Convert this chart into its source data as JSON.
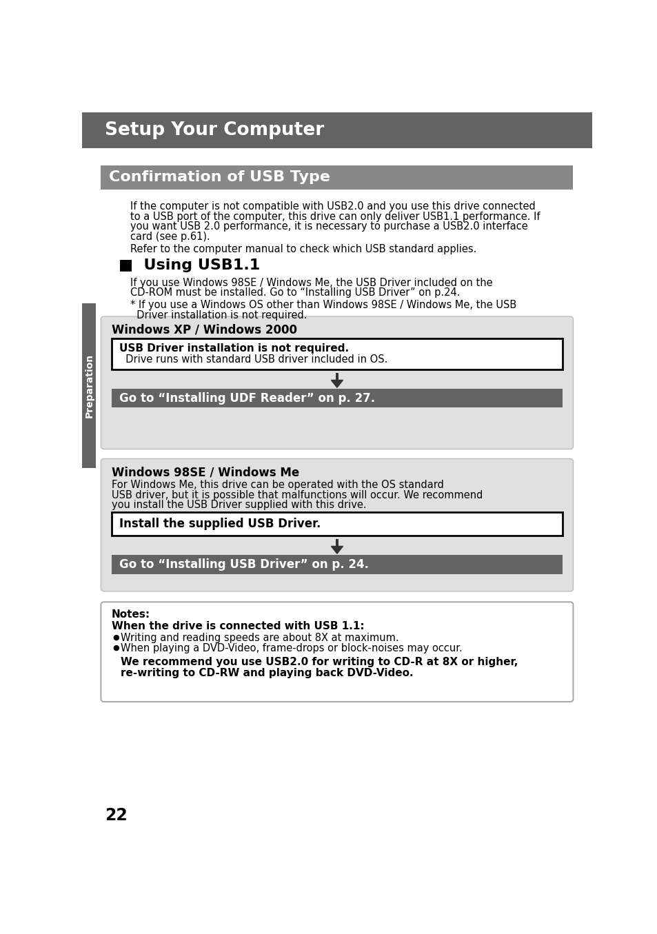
{
  "page_bg": "#ffffff",
  "header_bg": "#636363",
  "header_text": "Setup Your Computer",
  "header_text_color": "#ffffff",
  "section_title_bg": "#888888",
  "section_title_text": "Confirmation of USB Type",
  "section_title_color": "#ffffff",
  "body_text_color": "#000000",
  "para1_line1": "If the computer is not compatible with USB2.0 and you use this drive connected",
  "para1_line2": "to a USB port of the computer, this drive can only deliver USB1.1 performance. If",
  "para1_line3": "you want USB 2.0 performance, it is necessary to purchase a USB2.0 interface",
  "para1_line4": "card (see p.61).",
  "para2": "Refer to the computer manual to check which USB standard applies.",
  "using_usb_title": "■  Using USB1.1",
  "usb_para1_line1": "If you use Windows 98SE / Windows Me, the USB Driver included on the",
  "usb_para1_line2": "CD-ROM must be installed. Go to “Installing USB Driver” on p.24.",
  "usb_para2_line1": "* If you use a Windows OS other than Windows 98SE / Windows Me, the USB",
  "usb_para2_line2": "  Driver installation is not required.",
  "box1_title": "Windows XP / Windows 2000",
  "box1_inner_bold": "USB Driver installation is not required.",
  "box1_inner_normal": "  Drive runs with standard USB driver included in OS.",
  "box1_goto_text": "Go to “Installing UDF Reader” on p. 27.",
  "box2_title": "Windows 98SE / Windows Me",
  "box2_para_line1": "For Windows Me, this drive can be operated with the OS standard",
  "box2_para_line2": "USB driver, but it is possible that malfunctions will occur. We recommend",
  "box2_para_line3": "you install the USB Driver supplied with this drive.",
  "box2_inner_text": "Install the supplied USB Driver.",
  "box2_goto_text": "Go to “Installing USB Driver” on p. 24.",
  "notes_title": "Notes:",
  "notes_subtitle": "When the drive is connected with USB 1.1:",
  "notes_bullet1": "Writing and reading speeds are about 8X at maximum.",
  "notes_bullet2": "When playing a DVD-Video, frame-drops or block-noises may occur.",
  "notes_bold_line1": "We recommend you use USB2.0 for writing to CD-R at 8X or higher,",
  "notes_bold_line2": "re-writing to CD-RW and playing back DVD-Video.",
  "preparation_label": "Preparation",
  "page_number": "22",
  "light_gray_box_bg": "#e0e0e0",
  "dark_gray_bar_bg": "#636363",
  "dark_gray_bar_text": "#ffffff",
  "inner_box_bg": "#ffffff",
  "inner_box_border": "#000000",
  "notes_box_bg": "#ffffff",
  "notes_box_border": "#aaaaaa",
  "prep_tab_bg": "#636363",
  "prep_tab_text": "#ffffff"
}
